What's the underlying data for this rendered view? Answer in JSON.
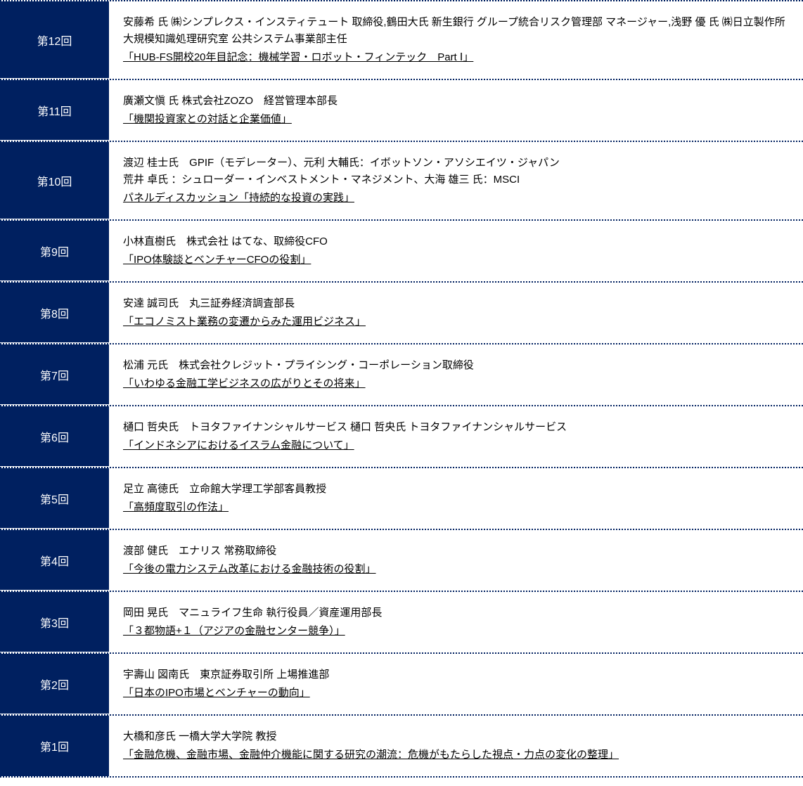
{
  "colors": {
    "header_bg": "#002060",
    "header_text": "#ffffff",
    "content_text": "#000000",
    "border_color": "#002060"
  },
  "sessions": [
    {
      "label": "第12回",
      "speaker": "安藤希 氏 ㈱シンプレクス・インスティテュート 取締役,鶴田大氏 新生銀行 グループ統合リスク管理部 マネージャー,浅野 優 氏 ㈱日立製作所 大規模知識処理研究室 公共システム事業部主任",
      "title": "「HUB-FS開校20年目記念：機械学習・ロボット・フィンテック　Part Ⅰ」"
    },
    {
      "label": "第11回",
      "speaker": "廣瀬文愼 氏 株式会社ZOZO　経営管理本部長",
      "title": "「機関投資家との対話と企業価値」"
    },
    {
      "label": "第10回",
      "speaker": "渡辺 桂士氏　GPIF（モデレーター）、元利 大輔氏：イボットソン・アソシエイツ・ジャパン\n荒井 卓氏 ：シュローダー・インベストメント・マネジメント、大海 雄三 氏：MSCI",
      "title": "パネルディスカッション「持続的な投資の実践」"
    },
    {
      "label": "第9回",
      "speaker": "小林直樹氏　株式会社 はてな、取締役CFO",
      "title": "「IPO体験談とベンチャーCFOの役割」"
    },
    {
      "label": "第8回",
      "speaker": "安達 誠司氏　丸三証券経済調査部長",
      "title": "「エコノミスト業務の変遷からみた運用ビジネス」"
    },
    {
      "label": "第7回",
      "speaker": "松浦 元氏　株式会社クレジット・プライシング・コーポレーション取締役",
      "title": "「いわゆる金融工学ビジネスの広がりとその将来」"
    },
    {
      "label": "第6回",
      "speaker": "樋口 哲央氏　トヨタファイナンシャルサービス 樋口 哲央氏 トヨタファイナンシャルサービス",
      "title": "「インドネシアにおけるイスラム金融について」"
    },
    {
      "label": "第5回",
      "speaker": "足立 高徳氏　立命館大学理工学部客員教授",
      "title": "「高頻度取引の作法」"
    },
    {
      "label": "第4回",
      "speaker": "渡部 健氏　エナリス 常務取締役",
      "title": "「今後の電力システム改革における金融技術の役割」"
    },
    {
      "label": "第3回",
      "speaker": "岡田 晃氏　マニュライフ生命 執行役員／資産運用部長",
      "title": "「３都物語+１（アジアの金融センター競争）」"
    },
    {
      "label": "第2回",
      "speaker": "宇壽山 図南氏　東京証券取引所 上場推進部",
      "title": "「日本のIPO市場とベンチャーの動向」"
    },
    {
      "label": "第1回",
      "speaker": "大橋和彦氏 一橋大学大学院 教授",
      "title": "「金融危機、金融市場、金融仲介機能に関する研究の潮流：危機がもたらした視点・力点の変化の整理」"
    }
  ]
}
